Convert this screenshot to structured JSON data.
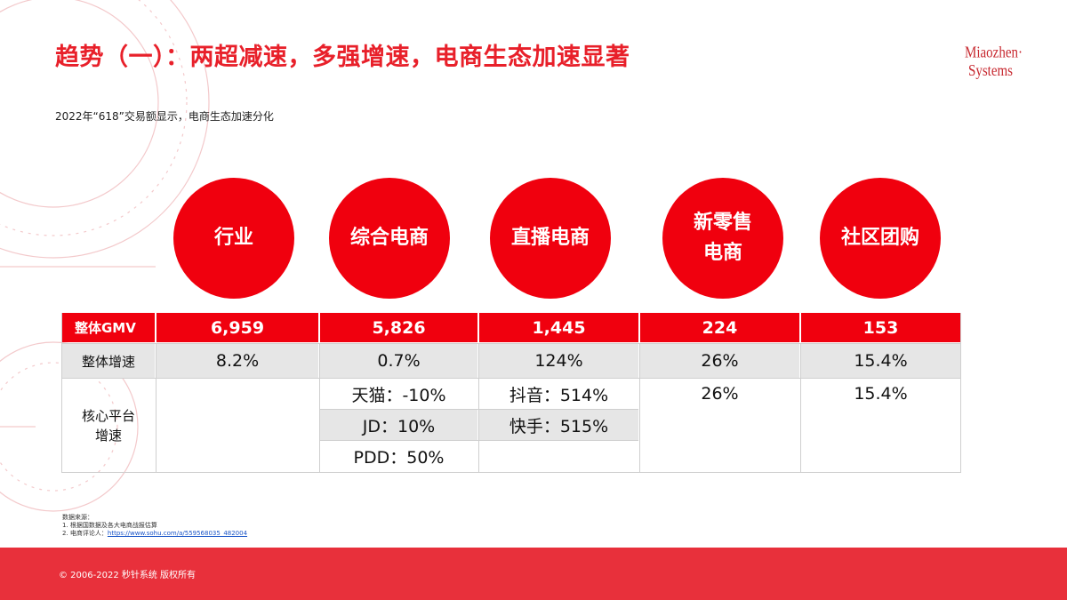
{
  "title": "趋势（一）：两超减速，多强增速，电商生态加速显著",
  "logo": {
    "line1": "Miaozhen·",
    "line2": "Systems"
  },
  "subtitle": "2022年“618”交易额显示，电商生态加速分化",
  "categories": [
    {
      "label": "行业"
    },
    {
      "label": "综合电商"
    },
    {
      "label": "直播电商"
    },
    {
      "label_line1": "新零售",
      "label_line2": "电商"
    },
    {
      "label": "社区团购"
    }
  ],
  "table": {
    "gmv_label": "整体GMV",
    "gmv": [
      "6,959",
      "5,826",
      "1,445",
      "224",
      "153"
    ],
    "growth_label": "整体增速",
    "growth": [
      "8.2%",
      "0.7%",
      "124%",
      "26%",
      "15.4%"
    ],
    "core_label_line1": "核心平台",
    "core_label_line2": "增速",
    "core": {
      "general": [
        "天猫：-10%",
        "JD：10%",
        "PDD：50%"
      ],
      "live": [
        "抖音：514%",
        "快手：515%"
      ],
      "new_retail": "26%",
      "community": "15.4%"
    }
  },
  "notes": {
    "heading": "数据来源：",
    "line1": "1. 根据国数据及各大电商战报估算",
    "line2_prefix": "2. 电商评论人：",
    "line2_link": "https://www.sohu.com/a/559568035_482004"
  },
  "footer": "© 2006-2022 秒针系统 版权所有",
  "colors": {
    "accent": "#f0000e",
    "title": "#e8202a",
    "footer_bg": "#e8303b"
  }
}
